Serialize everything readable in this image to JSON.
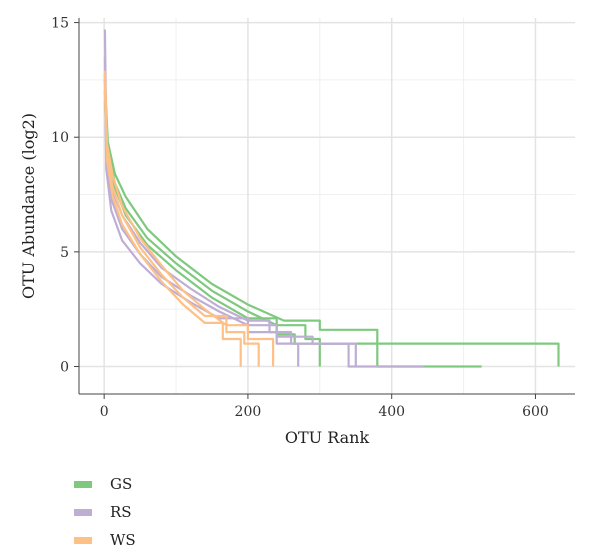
{
  "chart_data": {
    "type": "line",
    "xlabel": "OTU Rank",
    "ylabel": "OTU Abundance (log2)",
    "xlim": [
      -35,
      655
    ],
    "ylim": [
      -1.2,
      15.2
    ],
    "xticks": [
      0,
      200,
      400,
      600
    ],
    "xtick_labels": [
      "0",
      "200",
      "400",
      "600"
    ],
    "yticks": [
      0,
      5,
      10,
      15
    ],
    "ytick_labels": [
      "0",
      "5",
      "10",
      "15"
    ],
    "grid": true,
    "legend_position": "bottom-left",
    "series": [
      {
        "name": "GS",
        "color": "#7fc97f",
        "curves": [
          {
            "x": [
              1,
              5,
              15,
              30,
              60,
              100,
              150,
              200,
              250,
              300,
              365,
              380,
              545,
              632
            ],
            "y": [
              12.5,
              9.8,
              8.4,
              7.4,
              6.0,
              4.8,
              3.6,
              2.7,
              2.0,
              1.6,
              1.6,
              1.0,
              1.0,
              0.0
            ]
          },
          {
            "x": [
              1,
              5,
              15,
              30,
              60,
              100,
              150,
              200,
              240,
              280,
              300,
              330,
              380,
              440,
              525
            ],
            "y": [
              12.0,
              9.5,
              8.0,
              6.9,
              5.6,
              4.5,
              3.3,
              2.4,
              1.8,
              1.2,
              1.0,
              1.0,
              0.0,
              0.0,
              0.0
            ]
          },
          {
            "x": [
              1,
              5,
              15,
              30,
              60,
              100,
              150,
              200,
              240,
              265,
              300
            ],
            "y": [
              11.5,
              9.1,
              7.8,
              6.6,
              5.3,
              4.2,
              3.0,
              2.1,
              1.4,
              1.0,
              0.0
            ]
          }
        ]
      },
      {
        "name": "RS",
        "color": "#beaed4",
        "curves": [
          {
            "x": [
              1,
              3,
              10,
              25,
              50,
              80,
              120,
              160,
              200,
              230,
              260,
              300,
              340,
              445
            ],
            "y": [
              14.7,
              10.0,
              7.8,
              6.6,
              5.4,
              4.3,
              3.4,
              2.6,
              2.0,
              1.5,
              1.0,
              1.0,
              0.0,
              0.0
            ]
          },
          {
            "x": [
              1,
              3,
              10,
              25,
              50,
              80,
              120,
              160,
              200,
              240,
              290,
              350
            ],
            "y": [
              13.5,
              9.2,
              7.3,
              6.0,
              4.9,
              3.9,
              3.1,
              2.4,
              1.8,
              1.3,
              1.0,
              0.0
            ]
          },
          {
            "x": [
              1,
              3,
              10,
              25,
              50,
              80,
              120,
              160,
              200,
              240,
              270
            ],
            "y": [
              12.8,
              8.6,
              6.8,
              5.5,
              4.5,
              3.6,
              2.8,
              2.1,
              1.5,
              1.0,
              0.0
            ]
          }
        ]
      },
      {
        "name": "WS",
        "color": "#fdc086",
        "curves": [
          {
            "x": [
              1,
              4,
              12,
              25,
              50,
              80,
              110,
              140,
              170,
              200,
              235
            ],
            "y": [
              12.9,
              9.7,
              8.3,
              7.0,
              5.6,
              4.4,
              3.3,
              2.5,
              1.8,
              1.2,
              0.0
            ]
          },
          {
            "x": [
              1,
              4,
              12,
              25,
              50,
              80,
              110,
              140,
              170,
              195,
              215
            ],
            "y": [
              12.4,
              9.3,
              7.8,
              6.6,
              5.2,
              4.0,
              3.0,
              2.2,
              1.5,
              1.0,
              0.0
            ]
          },
          {
            "x": [
              1,
              4,
              12,
              25,
              50,
              80,
              110,
              140,
              165,
              190
            ],
            "y": [
              12.0,
              9.0,
              7.4,
              6.2,
              4.9,
              3.7,
              2.7,
              1.9,
              1.2,
              0.0
            ]
          }
        ]
      }
    ]
  },
  "legend": {
    "items": [
      {
        "label": "GS",
        "color": "#7fc97f"
      },
      {
        "label": "RS",
        "color": "#beaed4"
      },
      {
        "label": "WS",
        "color": "#fdc086"
      }
    ]
  }
}
